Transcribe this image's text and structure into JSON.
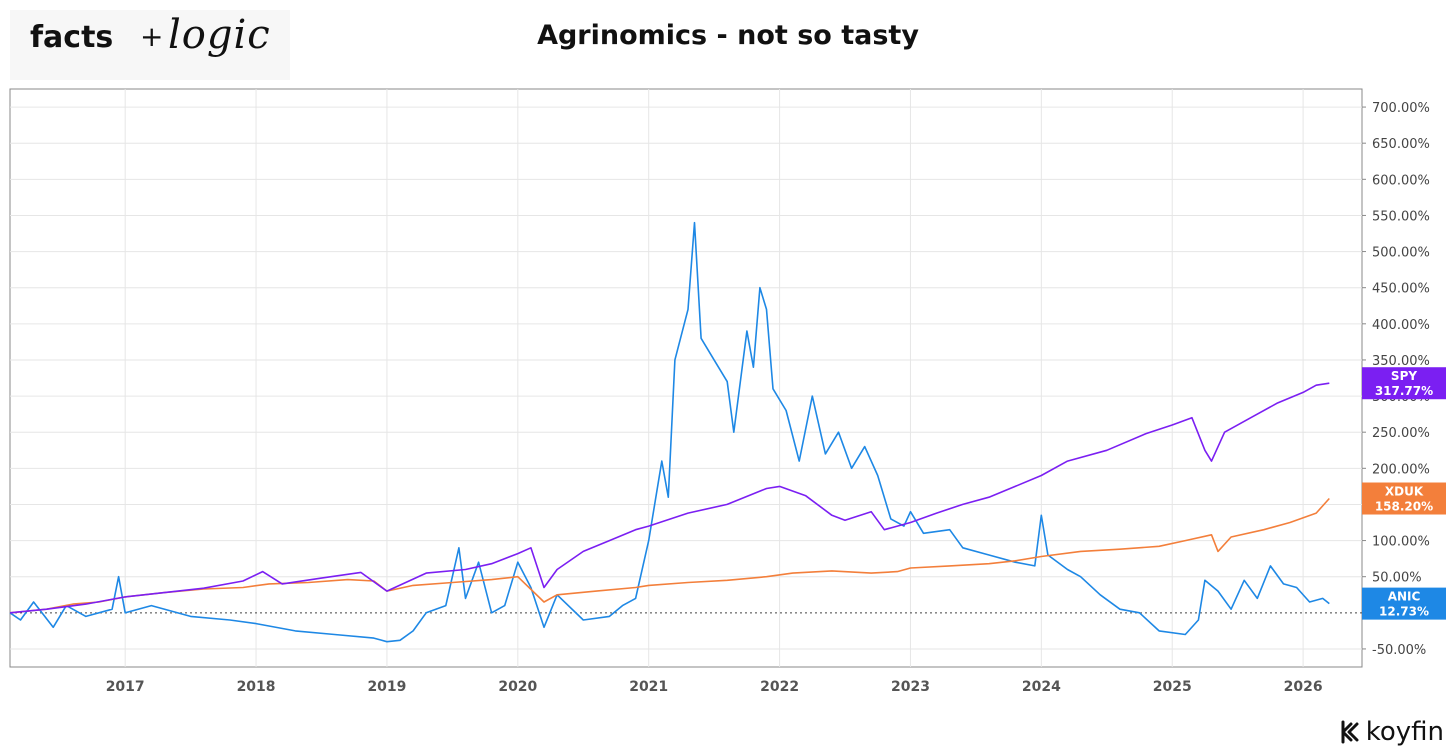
{
  "logo": {
    "part1": "facts",
    "plus": "+",
    "part2": "logic"
  },
  "title": "Agrinomics - not so tasty",
  "brand": "koyfin",
  "chart_data": {
    "type": "line",
    "title": "Agrinomics - not so tasty",
    "xlim": [
      2016.12,
      2026.45
    ],
    "ylim": [
      -75,
      725
    ],
    "x_ticks": [
      2017,
      2018,
      2019,
      2020,
      2021,
      2022,
      2023,
      2024,
      2025,
      2026
    ],
    "x_tick_labels": [
      "2017",
      "2018",
      "2019",
      "2020",
      "2021",
      "2022",
      "2023",
      "2024",
      "2025",
      "2026"
    ],
    "y_ticks": [
      -50,
      50,
      100,
      150,
      200,
      250,
      300,
      350,
      400,
      450,
      500,
      550,
      600,
      650,
      700
    ],
    "y_tick_labels": [
      "-50.00%",
      "50.00%",
      "100.00%",
      "150.00%",
      "200.00%",
      "250.00%",
      "300.00%",
      "350.00%",
      "400.00%",
      "450.00%",
      "500.00%",
      "550.00%",
      "600.00%",
      "650.00%",
      "700.00%"
    ],
    "grid": true,
    "baseline": 0,
    "series": [
      {
        "name": "SPY",
        "color": "#7b1ff2",
        "last_label": "317.77%",
        "points": [
          [
            2016.12,
            0
          ],
          [
            2016.4,
            5
          ],
          [
            2016.7,
            12
          ],
          [
            2017.0,
            22
          ],
          [
            2017.3,
            28
          ],
          [
            2017.6,
            34
          ],
          [
            2017.9,
            44
          ],
          [
            2018.05,
            57
          ],
          [
            2018.2,
            40
          ],
          [
            2018.5,
            48
          ],
          [
            2018.8,
            56
          ],
          [
            2019.0,
            30
          ],
          [
            2019.3,
            55
          ],
          [
            2019.6,
            60
          ],
          [
            2019.8,
            68
          ],
          [
            2020.0,
            82
          ],
          [
            2020.1,
            90
          ],
          [
            2020.2,
            35
          ],
          [
            2020.3,
            60
          ],
          [
            2020.5,
            85
          ],
          [
            2020.7,
            100
          ],
          [
            2020.9,
            115
          ],
          [
            2021.0,
            120
          ],
          [
            2021.3,
            138
          ],
          [
            2021.6,
            150
          ],
          [
            2021.9,
            172
          ],
          [
            2022.0,
            175
          ],
          [
            2022.2,
            162
          ],
          [
            2022.4,
            135
          ],
          [
            2022.5,
            128
          ],
          [
            2022.7,
            140
          ],
          [
            2022.8,
            115
          ],
          [
            2023.0,
            125
          ],
          [
            2023.2,
            138
          ],
          [
            2023.4,
            150
          ],
          [
            2023.6,
            160
          ],
          [
            2023.8,
            175
          ],
          [
            2024.0,
            190
          ],
          [
            2024.2,
            210
          ],
          [
            2024.5,
            225
          ],
          [
            2024.8,
            248
          ],
          [
            2025.0,
            260
          ],
          [
            2025.15,
            270
          ],
          [
            2025.25,
            225
          ],
          [
            2025.3,
            210
          ],
          [
            2025.4,
            250
          ],
          [
            2025.6,
            270
          ],
          [
            2025.8,
            290
          ],
          [
            2026.0,
            305
          ],
          [
            2026.1,
            315
          ],
          [
            2026.2,
            317.77
          ]
        ]
      },
      {
        "name": "XDUK",
        "color": "#f37f3b",
        "last_label": "158.20%",
        "points": [
          [
            2016.12,
            0
          ],
          [
            2016.4,
            5
          ],
          [
            2016.6,
            12
          ],
          [
            2016.8,
            15
          ],
          [
            2017.0,
            22
          ],
          [
            2017.3,
            28
          ],
          [
            2017.6,
            33
          ],
          [
            2017.9,
            35
          ],
          [
            2018.1,
            40
          ],
          [
            2018.4,
            42
          ],
          [
            2018.7,
            46
          ],
          [
            2018.9,
            44
          ],
          [
            2019.0,
            30
          ],
          [
            2019.2,
            38
          ],
          [
            2019.5,
            42
          ],
          [
            2019.8,
            46
          ],
          [
            2020.0,
            50
          ],
          [
            2020.2,
            15
          ],
          [
            2020.3,
            25
          ],
          [
            2020.6,
            30
          ],
          [
            2020.9,
            35
          ],
          [
            2021.0,
            38
          ],
          [
            2021.3,
            42
          ],
          [
            2021.6,
            45
          ],
          [
            2021.9,
            50
          ],
          [
            2022.1,
            55
          ],
          [
            2022.4,
            58
          ],
          [
            2022.7,
            55
          ],
          [
            2022.9,
            57
          ],
          [
            2023.0,
            62
          ],
          [
            2023.3,
            65
          ],
          [
            2023.6,
            68
          ],
          [
            2023.8,
            72
          ],
          [
            2024.0,
            78
          ],
          [
            2024.3,
            85
          ],
          [
            2024.6,
            88
          ],
          [
            2024.9,
            92
          ],
          [
            2025.1,
            100
          ],
          [
            2025.3,
            108
          ],
          [
            2025.35,
            85
          ],
          [
            2025.45,
            105
          ],
          [
            2025.7,
            115
          ],
          [
            2025.9,
            125
          ],
          [
            2026.1,
            138
          ],
          [
            2026.2,
            158.2
          ]
        ]
      },
      {
        "name": "ANIC",
        "color": "#1e88e5",
        "last_label": "12.73%",
        "points": [
          [
            2016.12,
            0
          ],
          [
            2016.2,
            -10
          ],
          [
            2016.3,
            15
          ],
          [
            2016.45,
            -20
          ],
          [
            2016.55,
            10
          ],
          [
            2016.7,
            -5
          ],
          [
            2016.9,
            5
          ],
          [
            2016.95,
            50
          ],
          [
            2017.0,
            0
          ],
          [
            2017.2,
            10
          ],
          [
            2017.5,
            -5
          ],
          [
            2017.8,
            -10
          ],
          [
            2018.0,
            -15
          ],
          [
            2018.3,
            -25
          ],
          [
            2018.6,
            -30
          ],
          [
            2018.9,
            -35
          ],
          [
            2019.0,
            -40
          ],
          [
            2019.1,
            -38
          ],
          [
            2019.2,
            -25
          ],
          [
            2019.3,
            0
          ],
          [
            2019.45,
            10
          ],
          [
            2019.55,
            90
          ],
          [
            2019.6,
            20
          ],
          [
            2019.7,
            70
          ],
          [
            2019.8,
            0
          ],
          [
            2019.9,
            10
          ],
          [
            2020.0,
            70
          ],
          [
            2020.1,
            35
          ],
          [
            2020.2,
            -20
          ],
          [
            2020.3,
            25
          ],
          [
            2020.5,
            -10
          ],
          [
            2020.7,
            -5
          ],
          [
            2020.8,
            10
          ],
          [
            2020.9,
            20
          ],
          [
            2021.0,
            100
          ],
          [
            2021.1,
            210
          ],
          [
            2021.15,
            160
          ],
          [
            2021.2,
            350
          ],
          [
            2021.3,
            420
          ],
          [
            2021.35,
            540
          ],
          [
            2021.4,
            380
          ],
          [
            2021.5,
            350
          ],
          [
            2021.6,
            320
          ],
          [
            2021.65,
            250
          ],
          [
            2021.75,
            390
          ],
          [
            2021.8,
            340
          ],
          [
            2021.85,
            450
          ],
          [
            2021.9,
            420
          ],
          [
            2021.95,
            310
          ],
          [
            2022.05,
            280
          ],
          [
            2022.15,
            210
          ],
          [
            2022.25,
            300
          ],
          [
            2022.35,
            220
          ],
          [
            2022.45,
            250
          ],
          [
            2022.55,
            200
          ],
          [
            2022.65,
            230
          ],
          [
            2022.75,
            190
          ],
          [
            2022.85,
            130
          ],
          [
            2022.95,
            120
          ],
          [
            2023.0,
            140
          ],
          [
            2023.1,
            110
          ],
          [
            2023.3,
            115
          ],
          [
            2023.4,
            90
          ],
          [
            2023.6,
            80
          ],
          [
            2023.8,
            70
          ],
          [
            2023.95,
            65
          ],
          [
            2024.0,
            135
          ],
          [
            2024.05,
            80
          ],
          [
            2024.2,
            60
          ],
          [
            2024.3,
            50
          ],
          [
            2024.45,
            25
          ],
          [
            2024.6,
            5
          ],
          [
            2024.75,
            0
          ],
          [
            2024.9,
            -25
          ],
          [
            2025.1,
            -30
          ],
          [
            2025.2,
            -10
          ],
          [
            2025.25,
            45
          ],
          [
            2025.35,
            30
          ],
          [
            2025.45,
            5
          ],
          [
            2025.55,
            45
          ],
          [
            2025.65,
            20
          ],
          [
            2025.75,
            65
          ],
          [
            2025.85,
            40
          ],
          [
            2025.95,
            35
          ],
          [
            2026.05,
            15
          ],
          [
            2026.15,
            20
          ],
          [
            2026.2,
            12.73
          ]
        ]
      }
    ]
  }
}
